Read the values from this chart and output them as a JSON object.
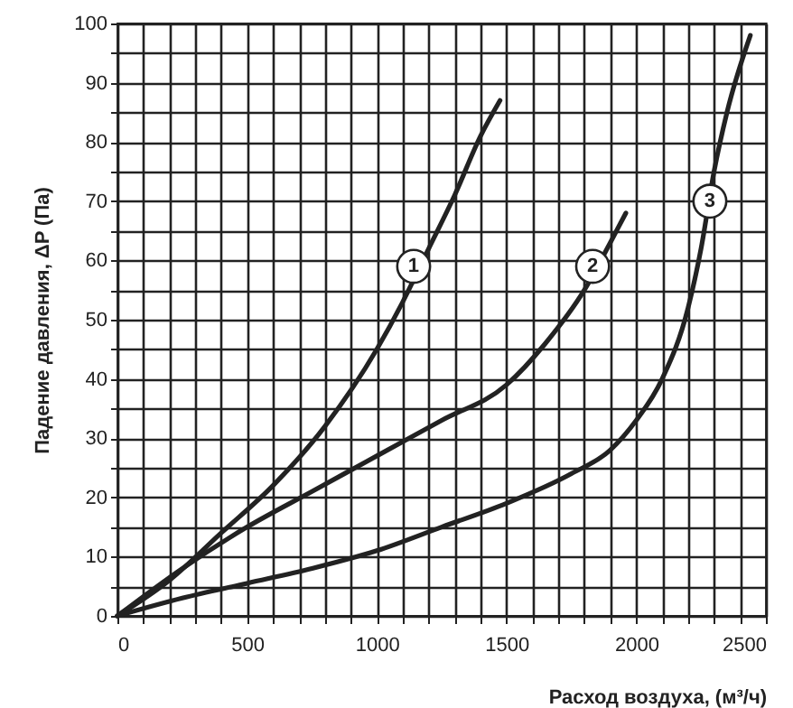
{
  "chart_data": {
    "type": "line",
    "xlabel": "Расход воздуха, (м³/ч)",
    "ylabel": "Падение давления, ΔP (Па)",
    "x": [
      0,
      200,
      400,
      600,
      800,
      1000,
      1100,
      1200,
      1300,
      1400,
      1475
    ],
    "series": [
      {
        "color": "#222222",
        "values": [
          0,
          6,
          14,
          22,
          32,
          45,
          53,
          62,
          71,
          81,
          87
        ]
      },
      {
        "color": "#222222",
        "x": [
          0,
          250,
          500,
          750,
          1000,
          1250,
          1500,
          1650,
          1800,
          1900,
          1960
        ],
        "values": [
          0,
          8,
          15,
          21,
          27,
          33,
          39,
          46,
          55,
          63,
          68
        ]
      },
      {
        "color": "#222222",
        "x": [
          0,
          250,
          500,
          750,
          1000,
          1250,
          1500,
          1750,
          1900,
          2000,
          2100,
          2200,
          2250,
          2300,
          2350,
          2440
        ],
        "values": [
          0,
          3,
          5.5,
          8,
          11,
          15,
          19,
          24,
          28,
          33,
          40,
          52,
          62,
          75,
          85,
          98
        ]
      }
    ],
    "annotations": [
      {
        "text": "1",
        "x": 1142,
        "y": 59
      },
      {
        "text": "2",
        "x": 1832,
        "y": 59
      },
      {
        "text": "3",
        "x": 2284,
        "y": 70
      }
    ],
    "xlim": [
      0,
      2500
    ],
    "ylim": [
      0,
      100
    ],
    "xticks": [
      0,
      {
        "value": 100,
        "label": null
      },
      {
        "value": 200,
        "label": null
      },
      {
        "value": 300,
        "label": null
      },
      {
        "value": 400,
        "label": null
      },
      500,
      {
        "value": 600,
        "label": null
      },
      {
        "value": 700,
        "label": null
      },
      {
        "value": 800,
        "label": null
      },
      {
        "value": 900,
        "label": null
      },
      1000,
      {
        "value": 1100,
        "label": null
      },
      {
        "value": 1200,
        "label": null
      },
      {
        "value": 1300,
        "label": null
      },
      {
        "value": 1400,
        "label": null
      },
      1500,
      {
        "value": 1600,
        "label": null
      },
      {
        "value": 1700,
        "label": null
      },
      {
        "value": 1800,
        "label": null
      },
      {
        "value": 1900,
        "label": null
      },
      2000,
      {
        "value": 2100,
        "label": null
      },
      {
        "value": 2200,
        "label": null
      },
      {
        "value": 2300,
        "label": null
      },
      {
        "value": 2400,
        "label": null
      },
      2500
    ],
    "yticks": [
      0,
      {
        "value": 5,
        "label": null
      },
      10,
      {
        "value": 15,
        "label": null
      },
      20,
      {
        "value": 25,
        "label": null
      },
      30,
      {
        "value": 35,
        "label": null
      },
      40,
      {
        "value": 45,
        "label": null
      },
      50,
      {
        "value": 55,
        "label": null
      },
      60,
      {
        "value": 65,
        "label": null
      },
      70,
      {
        "value": 75,
        "label": null
      },
      80,
      {
        "value": 85,
        "label": null
      },
      90,
      {
        "value": 95,
        "label": null
      },
      100
    ],
    "grid": true,
    "marker": "none",
    "line_style": "solid"
  }
}
